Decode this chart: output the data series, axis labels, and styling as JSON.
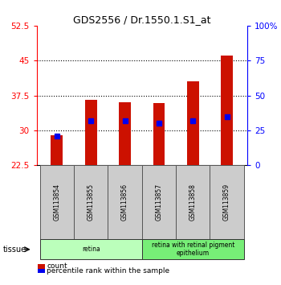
{
  "title": "GDS2556 / Dr.1550.1.S1_at",
  "samples": [
    "GSM113854",
    "GSM113855",
    "GSM113856",
    "GSM113857",
    "GSM113858",
    "GSM113859"
  ],
  "counts": [
    29.0,
    36.5,
    36.0,
    35.8,
    40.5,
    46.0
  ],
  "percentile_ranks_pct": [
    21.0,
    32.0,
    32.0,
    30.0,
    32.0,
    35.0
  ],
  "bar_bottom": 22.5,
  "ylim_left": [
    22.5,
    52.5
  ],
  "yticks_left": [
    22.5,
    30.0,
    37.5,
    45.0,
    52.5
  ],
  "ytick_labels_left": [
    "22.5",
    "30",
    "37.5",
    "45",
    "52.5"
  ],
  "ylim_right": [
    0,
    100
  ],
  "yticks_right": [
    0,
    25,
    50,
    75,
    100
  ],
  "ytick_labels_right": [
    "0",
    "25",
    "50",
    "75",
    "100%"
  ],
  "bar_color": "#cc1100",
  "percentile_color": "#0000ee",
  "tissue_groups": [
    {
      "label": "retina",
      "start": 0,
      "end": 2,
      "color": "#bbffbb"
    },
    {
      "label": "retina with retinal pigment\nepithelium",
      "start": 3,
      "end": 5,
      "color": "#77ee77"
    }
  ],
  "tissue_label": "tissue",
  "legend_count_label": "count",
  "legend_percentile_label": "percentile rank within the sample",
  "background_color": "#ffffff",
  "bar_width": 0.35,
  "percentile_marker_size": 4.5,
  "sample_box_color": "#cccccc",
  "sample_box_edge": "#555555"
}
